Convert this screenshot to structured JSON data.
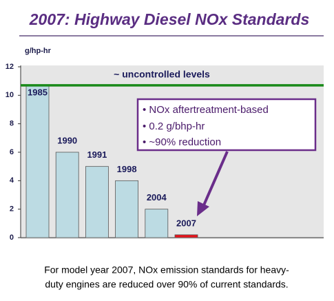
{
  "chart_data": {
    "type": "bar",
    "title": "2007: Highway Diesel NOx Standards",
    "y_label": "g/hp-hr",
    "categories": [
      "1985",
      "1990",
      "1991",
      "1998",
      "2004",
      "2007"
    ],
    "values": [
      10.7,
      6,
      5,
      4,
      2,
      0.2
    ],
    "colors": [
      "#bcdbe3",
      "#bcdbe3",
      "#bcdbe3",
      "#bcdbe3",
      "#bcdbe3",
      "#e8141c"
    ],
    "ylim": [
      0,
      12
    ],
    "yticks": [
      0,
      2,
      4,
      6,
      8,
      10,
      12
    ],
    "reference_line": {
      "label": "~ uncontrolled levels",
      "value": 10.7,
      "color": "#1a8a1a"
    },
    "annotation": [
      "• NOx aftertreatment-based",
      "• 0.2 g/bhp-hr",
      "• ~90% reduction"
    ],
    "caption": [
      "For model year 2007, NOx emission standards for heavy-",
      "duty engines are reduced over 90% of current standards."
    ]
  }
}
